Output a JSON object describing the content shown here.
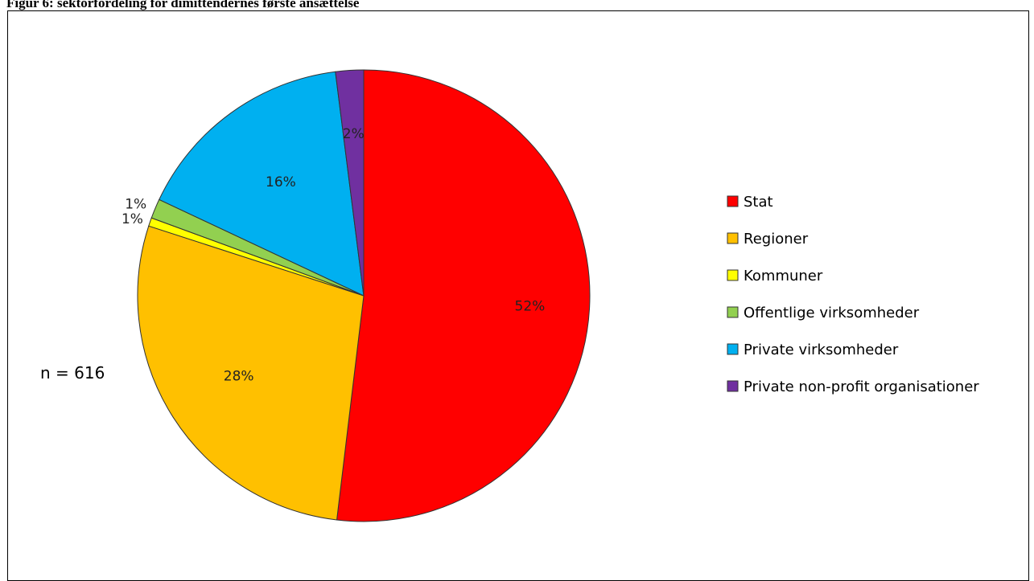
{
  "title": "Figur 6: sektorfordeling for dimittendernes første ansættelse",
  "annotation": "n = 616",
  "colors": {
    "Stat": "#ff0000",
    "Regioner": "#ffc000",
    "Kommuner": "#ffff00",
    "Offentlige virksomheder": "#92d050",
    "Private virksomheder": "#00b0f0",
    "Private non-profit organisationer": "#7030a0"
  },
  "chart_data": {
    "type": "pie",
    "title": "Figur 6: sektorfordeling for dimittendernes første ansættelse",
    "legend_position": "right",
    "annotation": "n = 616",
    "categories": [
      "Stat",
      "Regioner",
      "Kommuner",
      "Offentlige virksomheder",
      "Private virksomheder",
      "Private non-profit organisationer"
    ],
    "values": [
      51.9,
      28.1,
      0.6,
      1.4,
      16.0,
      2.0
    ],
    "data_labels": [
      "52%",
      "28%",
      "1%",
      "1%",
      "16%",
      "2%"
    ]
  }
}
